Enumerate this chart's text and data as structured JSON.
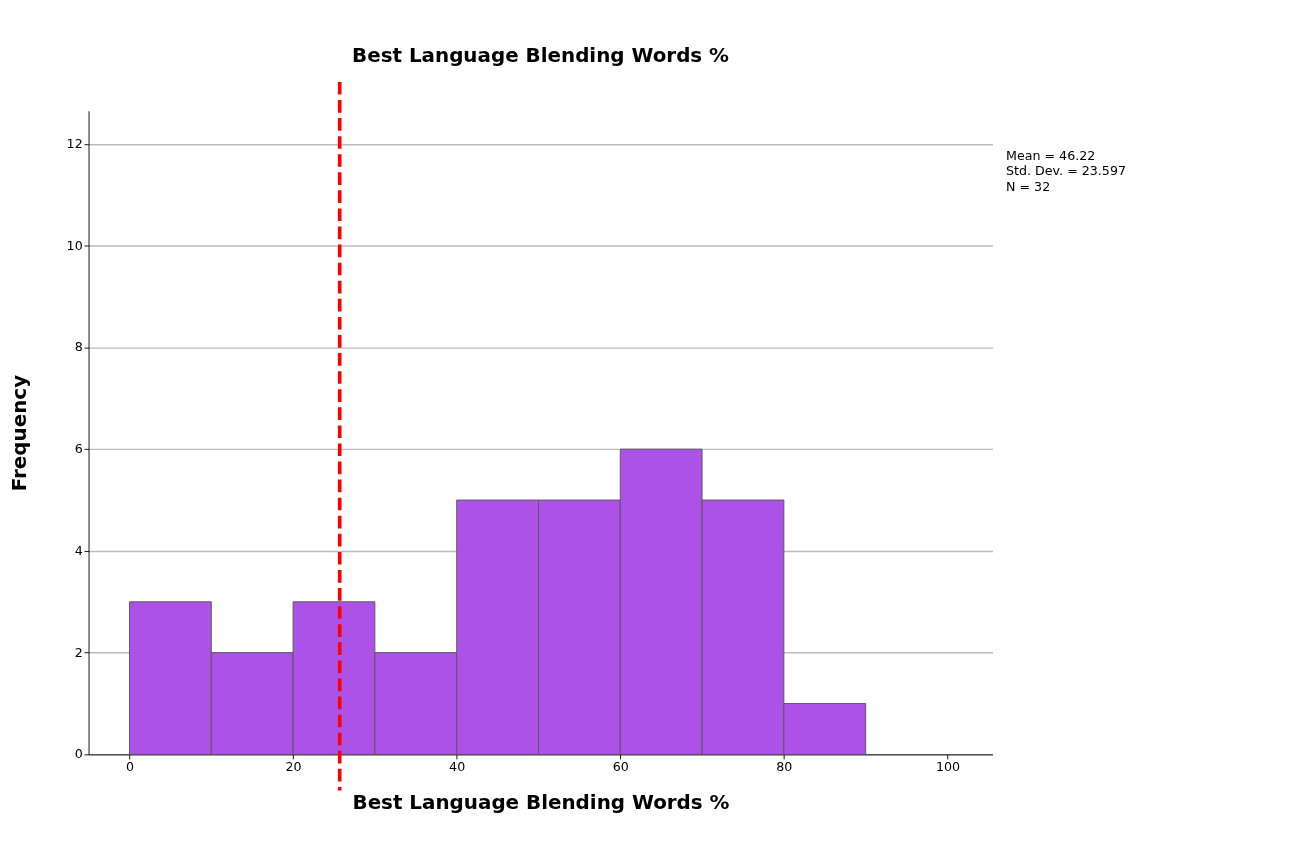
{
  "chart_data": {
    "type": "histogram",
    "title": "Best Language Blending Words %",
    "xlabel": "Best Language Blending Words %",
    "ylabel": "Frequency",
    "bins": [
      0,
      10,
      20,
      30,
      40,
      50,
      60,
      70,
      80,
      90
    ],
    "values": [
      3,
      2,
      3,
      2,
      5,
      5,
      6,
      5,
      1
    ],
    "color": "#ad52e8",
    "xlim": [
      -5,
      105.5
    ],
    "ylim": [
      0,
      12.65
    ],
    "xticks": [
      0,
      20,
      40,
      60,
      80,
      100
    ],
    "yticks": [
      0,
      2,
      4,
      6,
      8,
      10,
      12
    ],
    "grid": "y",
    "ref_lines": [
      {
        "axis": "x",
        "value": 25.7,
        "color": "#ff0000",
        "line_style": "dashed"
      }
    ],
    "annotations": [
      "Mean = 46.22",
      "Std. Dev. = 23.597",
      "N = 32"
    ]
  }
}
